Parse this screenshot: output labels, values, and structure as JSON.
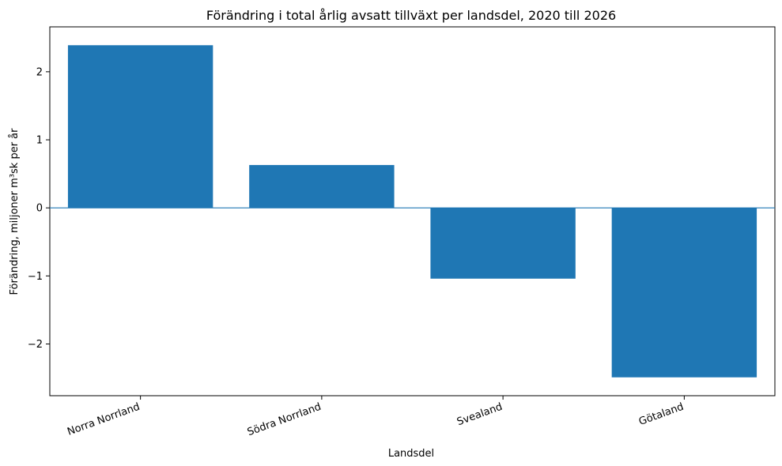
{
  "chart_data": {
    "type": "bar",
    "title": "Förändring i total årlig avsatt tillväxt per landsdel, 2020 till 2026",
    "xlabel": "Landsdel",
    "ylabel": "Förändring, miljoner m³sk per år",
    "categories": [
      "Norra Norrland",
      "Södra Norrland",
      "Svealand",
      "Götaland"
    ],
    "values": [
      2.39,
      0.63,
      -1.04,
      -2.49
    ],
    "ylim": [
      -2.76,
      2.66
    ],
    "yticks": [
      2,
      1,
      0,
      -1,
      -2
    ],
    "ytick_labels": [
      "2",
      "1",
      "0",
      "−1",
      "−2"
    ],
    "zero_line": true,
    "grid": false,
    "colors": {
      "bar": "#1f77b4",
      "zero_line": "#1f77b4",
      "axis": "#000000"
    }
  }
}
